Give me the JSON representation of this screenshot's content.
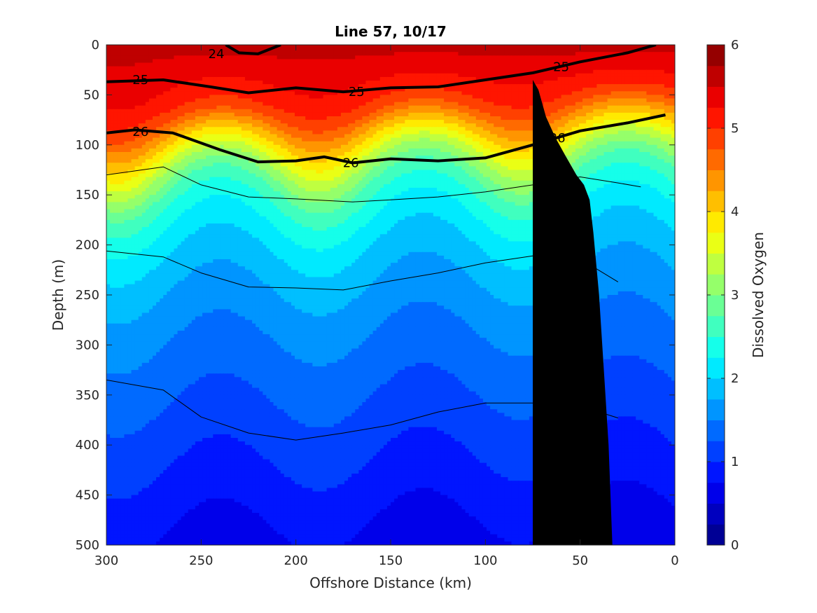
{
  "chart_data": {
    "type": "heatmap",
    "title": "Line 57, 10/17",
    "xlabel": "Offshore Distance (km)",
    "ylabel": "Depth (m)",
    "colorbar_label": "Dissolved Oxygen",
    "xlim": [
      300,
      0
    ],
    "x_reversed": true,
    "ylim": [
      0,
      500
    ],
    "y_reversed": true,
    "x_ticks": [
      "300",
      "250",
      "200",
      "150",
      "100",
      "50",
      "0"
    ],
    "y_ticks": [
      "0",
      "50",
      "100",
      "150",
      "200",
      "250",
      "300",
      "350",
      "400",
      "450",
      "500"
    ],
    "colorbar_range": [
      0,
      6
    ],
    "colorbar_step": 0.25,
    "colorbar_ticks": [
      "0",
      "1",
      "2",
      "3",
      "4",
      "5",
      "6"
    ],
    "oxygen_profile": {
      "depth": [
        0,
        25,
        50,
        75,
        100,
        125,
        150,
        175,
        200,
        225,
        250,
        275,
        300,
        325,
        350,
        375,
        400,
        425,
        450,
        475,
        500
      ],
      "value": [
        5.6,
        5.3,
        4.9,
        4.1,
        3.3,
        2.7,
        2.35,
        2.1,
        1.9,
        1.75,
        1.6,
        1.5,
        1.4,
        1.3,
        1.2,
        1.1,
        1.0,
        0.9,
        0.8,
        0.7,
        0.6
      ]
    },
    "density_contours": [
      {
        "value": 24,
        "bold": true,
        "labels": [
          {
            "text": "24",
            "x": 242,
            "y": 9
          }
        ],
        "points": [
          [
            237,
            0
          ],
          [
            230,
            8
          ],
          [
            220,
            9
          ],
          [
            208,
            0
          ]
        ]
      },
      {
        "value": 25,
        "bold": true,
        "labels": [
          {
            "text": "25",
            "x": 282,
            "y": 35
          },
          {
            "text": "25",
            "x": 168,
            "y": 47
          },
          {
            "text": "25",
            "x": 60,
            "y": 22
          }
        ],
        "points": [
          [
            300,
            37
          ],
          [
            270,
            35
          ],
          [
            245,
            42
          ],
          [
            225,
            48
          ],
          [
            200,
            43
          ],
          [
            175,
            47
          ],
          [
            150,
            43
          ],
          [
            125,
            42
          ],
          [
            100,
            35
          ],
          [
            75,
            28
          ],
          [
            50,
            17
          ],
          [
            25,
            8
          ],
          [
            10,
            0
          ]
        ]
      },
      {
        "value": 26,
        "bold": true,
        "labels": [
          {
            "text": "26",
            "x": 282,
            "y": 87
          },
          {
            "text": "26",
            "x": 171,
            "y": 118
          },
          {
            "text": "26",
            "x": 62,
            "y": 93
          }
        ],
        "points": [
          [
            300,
            88
          ],
          [
            285,
            85
          ],
          [
            265,
            88
          ],
          [
            240,
            105
          ],
          [
            220,
            117
          ],
          [
            200,
            116
          ],
          [
            185,
            112
          ],
          [
            170,
            118
          ],
          [
            150,
            114
          ],
          [
            125,
            116
          ],
          [
            100,
            113
          ],
          [
            75,
            100
          ],
          [
            50,
            86
          ],
          [
            25,
            78
          ],
          [
            5,
            70
          ]
        ]
      },
      {
        "value": 26.5,
        "bold": false,
        "labels": [],
        "points": [
          [
            300,
            130
          ],
          [
            270,
            122
          ],
          [
            250,
            140
          ],
          [
            225,
            152
          ],
          [
            200,
            154
          ],
          [
            170,
            157
          ],
          [
            150,
            155
          ],
          [
            125,
            152
          ],
          [
            100,
            147
          ],
          [
            75,
            140
          ],
          [
            50,
            132
          ],
          [
            30,
            138
          ],
          [
            18,
            142
          ]
        ]
      },
      {
        "value": 26.8,
        "bold": false,
        "labels": [],
        "points": [
          [
            300,
            206
          ],
          [
            270,
            212
          ],
          [
            250,
            228
          ],
          [
            225,
            242
          ],
          [
            200,
            243
          ],
          [
            175,
            245
          ],
          [
            150,
            236
          ],
          [
            125,
            228
          ],
          [
            100,
            218
          ],
          [
            75,
            211
          ],
          [
            50,
            214
          ],
          [
            30,
            237
          ]
        ]
      },
      {
        "value": 27,
        "bold": false,
        "labels": [],
        "points": [
          [
            300,
            335
          ],
          [
            270,
            345
          ],
          [
            250,
            372
          ],
          [
            225,
            388
          ],
          [
            200,
            395
          ],
          [
            175,
            388
          ],
          [
            150,
            380
          ],
          [
            125,
            367
          ],
          [
            100,
            358
          ],
          [
            75,
            358
          ],
          [
            50,
            361
          ],
          [
            30,
            373
          ]
        ]
      }
    ],
    "bathymetry": {
      "color": "#000000",
      "points": [
        [
          33,
          500
        ],
        [
          35,
          400
        ],
        [
          37,
          340
        ],
        [
          40,
          250
        ],
        [
          43,
          188
        ],
        [
          45,
          155
        ],
        [
          48,
          140
        ],
        [
          52,
          130
        ],
        [
          58,
          110
        ],
        [
          63,
          93
        ],
        [
          68,
          72
        ],
        [
          72,
          45
        ],
        [
          75,
          35
        ],
        [
          75,
          500
        ]
      ]
    }
  }
}
